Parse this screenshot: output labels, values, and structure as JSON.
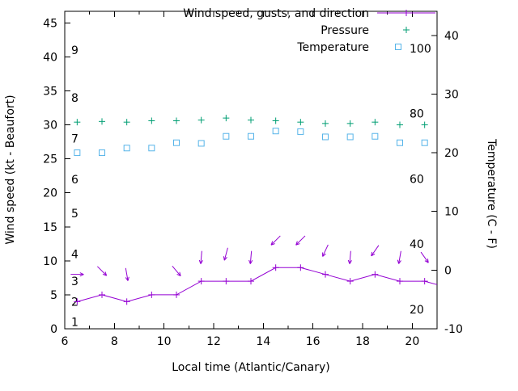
{
  "chart_data": {
    "type": "line",
    "title": "",
    "xlabel": "Local time (Atlantic/Canary)",
    "ylabel_left": "Wind speed (kt - Beaufort)",
    "ylabel_right": "Temperature (C - F)",
    "legend": [
      {
        "label": "Wind speed, gusts, and direction",
        "style": "line-plus",
        "color": "#9400d3"
      },
      {
        "label": "Pressure",
        "style": "plus",
        "color": "#009e73"
      },
      {
        "label": "Temperature",
        "style": "open-square",
        "color": "#56b4e9"
      }
    ],
    "axes": {
      "x": {
        "min": 6,
        "max": 21,
        "major_ticks": [
          6,
          8,
          10,
          12,
          14,
          16,
          18,
          20
        ],
        "minor_ticks": [
          7,
          9,
          11,
          13,
          15,
          17,
          19,
          21
        ]
      },
      "y_left": {
        "min": 0,
        "max": 46.7,
        "major_ticks": [
          0,
          5,
          10,
          15,
          20,
          25,
          30,
          35,
          40,
          45
        ]
      },
      "y_right": {
        "min": -10,
        "max": 44.1,
        "major_ticks": [
          -10,
          0,
          10,
          20,
          30,
          40
        ]
      }
    },
    "inner_labels": {
      "beaufort": [
        {
          "label": "1",
          "kt": 1
        },
        {
          "label": "2",
          "kt": 4
        },
        {
          "label": "3",
          "kt": 7
        },
        {
          "label": "4",
          "kt": 11
        },
        {
          "label": "5",
          "kt": 17
        },
        {
          "label": "6",
          "kt": 22
        },
        {
          "label": "7",
          "kt": 28
        },
        {
          "label": "8",
          "kt": 34
        },
        {
          "label": "9",
          "kt": 41
        }
      ],
      "fahrenheit": [
        {
          "label": "20",
          "f": 20
        },
        {
          "label": "40",
          "f": 40
        },
        {
          "label": "60",
          "f": 60
        },
        {
          "label": "80",
          "f": 80
        },
        {
          "label": "100",
          "f": 100
        }
      ]
    },
    "series": {
      "x": [
        6.5,
        7.5,
        8.5,
        9.5,
        10.5,
        11.5,
        12.5,
        13.5,
        14.5,
        15.5,
        16.5,
        17.5,
        18.5,
        19.5,
        20.5
      ],
      "wind_speed_kt": [
        4,
        5,
        4,
        5,
        5,
        7,
        7,
        7,
        9,
        9,
        8,
        7,
        8,
        7,
        7
      ],
      "wind_line_end": {
        "x": 21,
        "kt": 6.5
      },
      "gusts_kt": [
        8,
        8.5,
        8,
        null,
        8.5,
        10.5,
        11,
        10.5,
        13,
        13,
        11.5,
        10.5,
        11.5,
        10.5,
        10.5
      ],
      "wind_dir_deg": [
        90,
        135,
        170,
        null,
        140,
        185,
        195,
        185,
        225,
        225,
        205,
        185,
        215,
        190,
        145
      ],
      "pressure": [
        30.4,
        30.5,
        30.4,
        30.6,
        30.6,
        30.7,
        31.0,
        30.7,
        30.6,
        30.4,
        30.2,
        30.2,
        30.4,
        30.0,
        30.0
      ],
      "temperature_c": [
        20,
        20,
        20.8,
        20.8,
        21.7,
        21.6,
        22.8,
        22.8,
        23.7,
        23.6,
        22.7,
        22.7,
        22.8,
        21.7,
        21.7
      ]
    },
    "colors": {
      "wind": "#9400d3",
      "pressure": "#009e73",
      "temperature": "#56b4e9",
      "axis": "#000000"
    }
  }
}
